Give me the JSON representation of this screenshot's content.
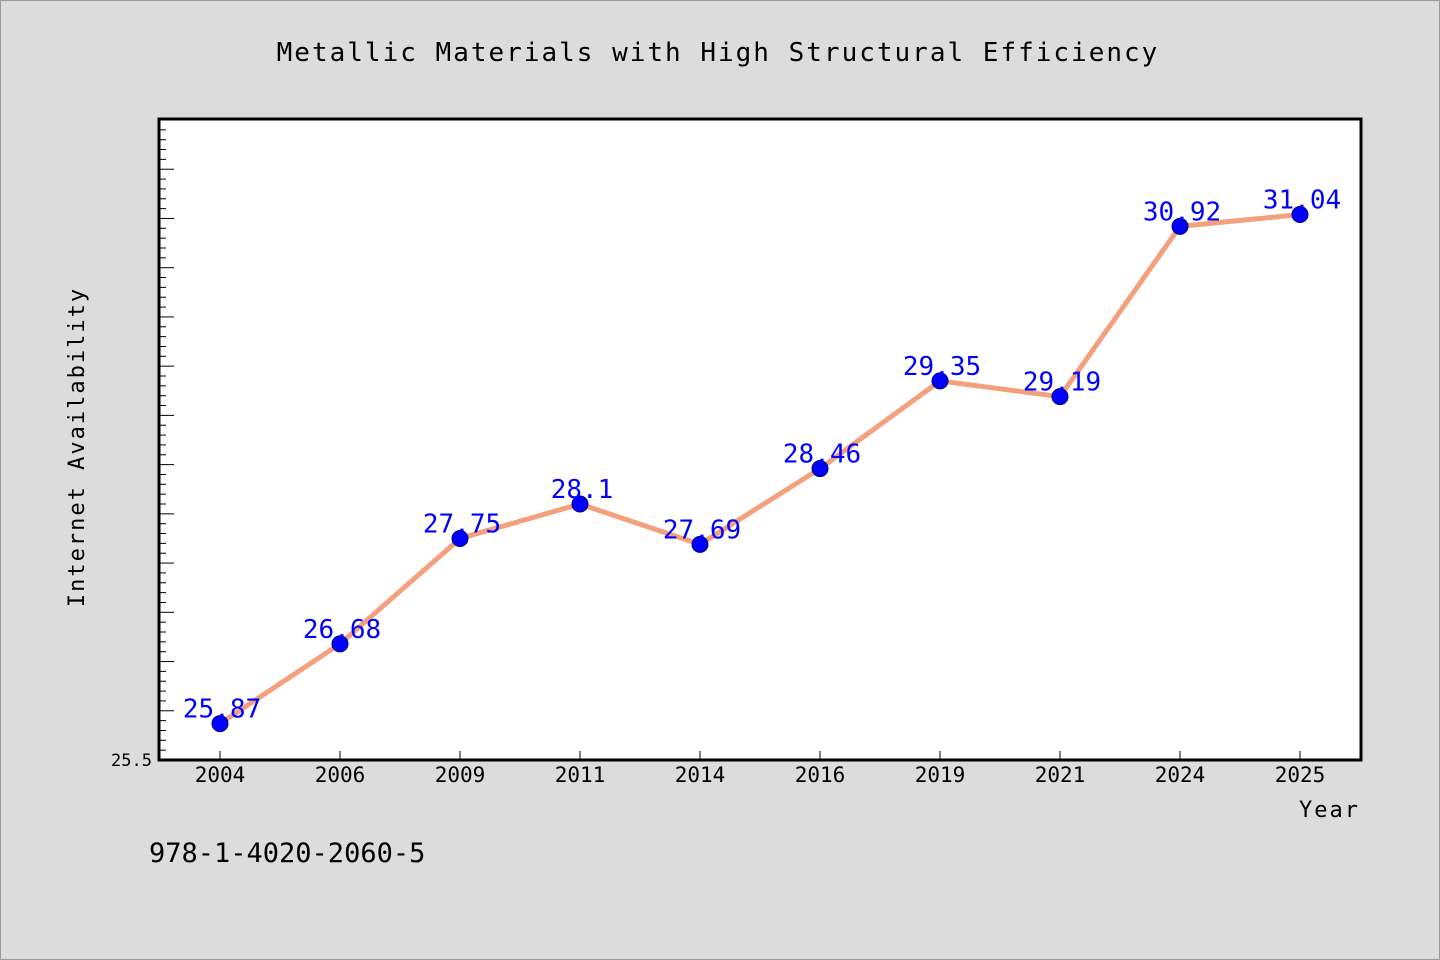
{
  "chart_data": {
    "type": "line",
    "title": "Metallic Materials with High Structural Efficiency",
    "xlabel": "Year",
    "ylabel": "Internet Availability",
    "categories": [
      "2004",
      "2006",
      "2009",
      "2011",
      "2014",
      "2016",
      "2019",
      "2021",
      "2024",
      "2025"
    ],
    "values": [
      25.87,
      26.68,
      27.75,
      28.1,
      27.69,
      28.46,
      29.35,
      29.19,
      30.92,
      31.04
    ],
    "data_labels": [
      "25.87",
      "26.68",
      "27.75",
      "28.1",
      "27.69",
      "28.46",
      "29.35",
      "29.19",
      "30.92",
      "31.04"
    ],
    "y_tick_labels": [
      "25.5"
    ],
    "ylim": [
      25.5,
      32.0
    ],
    "grid": false,
    "line_color": "#f4a07c",
    "marker_color": "#0000ff",
    "label_color": "#0000ff"
  },
  "footnote": "978-1-4020-2060-5"
}
